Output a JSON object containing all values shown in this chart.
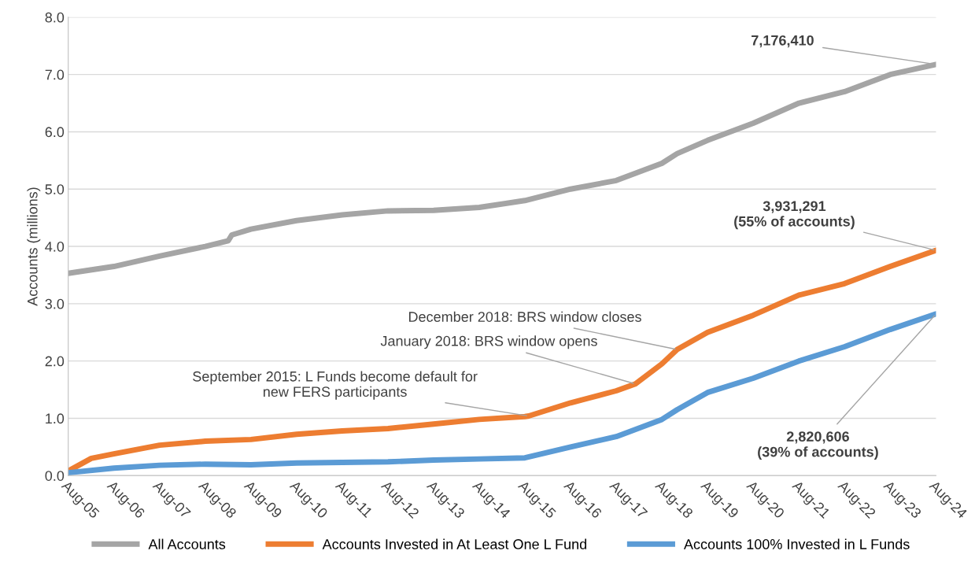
{
  "chart_data": {
    "type": "line",
    "ylabel": "Accounts (millions)",
    "ylim": [
      0,
      8
    ],
    "yticks": [
      {
        "value": 0,
        "label": "0.0"
      },
      {
        "value": 1,
        "label": "1.0"
      },
      {
        "value": 2,
        "label": "2.0"
      },
      {
        "value": 3,
        "label": "3.0"
      },
      {
        "value": 4,
        "label": "4.0"
      },
      {
        "value": 5,
        "label": "5.0"
      },
      {
        "value": 6,
        "label": "6.0"
      },
      {
        "value": 7,
        "label": "7.0"
      },
      {
        "value": 8,
        "label": "8.0"
      }
    ],
    "xlim": [
      "2005-08",
      "2024-08"
    ],
    "xticks": [
      {
        "value": "2005-08",
        "label": "Aug-05"
      },
      {
        "value": "2006-08",
        "label": "Aug-06"
      },
      {
        "value": "2007-08",
        "label": "Aug-07"
      },
      {
        "value": "2008-08",
        "label": "Aug-08"
      },
      {
        "value": "2009-08",
        "label": "Aug-09"
      },
      {
        "value": "2010-08",
        "label": "Aug-10"
      },
      {
        "value": "2011-08",
        "label": "Aug-11"
      },
      {
        "value": "2012-08",
        "label": "Aug-12"
      },
      {
        "value": "2013-08",
        "label": "Aug-13"
      },
      {
        "value": "2014-08",
        "label": "Aug-14"
      },
      {
        "value": "2015-08",
        "label": "Aug-15"
      },
      {
        "value": "2016-08",
        "label": "Aug-16"
      },
      {
        "value": "2017-08",
        "label": "Aug-17"
      },
      {
        "value": "2018-08",
        "label": "Aug-18"
      },
      {
        "value": "2019-08",
        "label": "Aug-19"
      },
      {
        "value": "2020-08",
        "label": "Aug-20"
      },
      {
        "value": "2021-08",
        "label": "Aug-21"
      },
      {
        "value": "2022-08",
        "label": "Aug-22"
      },
      {
        "value": "2023-08",
        "label": "Aug-23"
      },
      {
        "value": "2024-08",
        "label": "Aug-24"
      }
    ],
    "grid": "y",
    "legend": "bottom",
    "marker": "none",
    "line_style": "solid",
    "series": [
      {
        "name": "All Accounts",
        "color": "#a5a5a5",
        "x": [
          "2005-08",
          "2006-08",
          "2007-08",
          "2008-08",
          "2009-02",
          "2009-03",
          "2009-08",
          "2010-08",
          "2011-08",
          "2012-08",
          "2013-08",
          "2014-08",
          "2015-08",
          "2016-08",
          "2017-08",
          "2018-08",
          "2018-12",
          "2019-08",
          "2020-08",
          "2021-08",
          "2022-08",
          "2023-02",
          "2023-08",
          "2024-08"
        ],
        "values": [
          3.53,
          3.65,
          3.83,
          4.0,
          4.1,
          4.2,
          4.3,
          4.45,
          4.55,
          4.62,
          4.63,
          4.68,
          4.8,
          5.0,
          5.15,
          5.45,
          5.62,
          5.85,
          6.15,
          6.5,
          6.7,
          6.85,
          7.0,
          7.176
        ]
      },
      {
        "name": "Accounts Invested in At Least One L Fund",
        "color": "#ed7d31",
        "x": [
          "2005-08",
          "2006-02",
          "2006-08",
          "2007-08",
          "2008-08",
          "2009-08",
          "2010-08",
          "2011-08",
          "2012-08",
          "2013-08",
          "2014-08",
          "2015-08",
          "2015-09",
          "2016-08",
          "2017-08",
          "2018-01",
          "2018-08",
          "2018-12",
          "2019-08",
          "2020-08",
          "2021-08",
          "2022-08",
          "2023-08",
          "2024-08"
        ],
        "values": [
          0.08,
          0.3,
          0.38,
          0.53,
          0.6,
          0.63,
          0.72,
          0.78,
          0.82,
          0.9,
          0.98,
          1.03,
          1.04,
          1.27,
          1.48,
          1.6,
          1.95,
          2.2,
          2.5,
          2.8,
          3.15,
          3.35,
          3.65,
          3.931
        ]
      },
      {
        "name": "Accounts 100% Invested in L Funds",
        "color": "#5b9bd5",
        "x": [
          "2005-08",
          "2006-08",
          "2007-08",
          "2008-08",
          "2009-08",
          "2010-08",
          "2011-08",
          "2012-08",
          "2013-08",
          "2014-08",
          "2015-08",
          "2016-08",
          "2017-08",
          "2018-08",
          "2018-12",
          "2019-08",
          "2020-08",
          "2021-08",
          "2022-08",
          "2023-08",
          "2024-08"
        ],
        "values": [
          0.05,
          0.13,
          0.18,
          0.2,
          0.19,
          0.22,
          0.23,
          0.24,
          0.27,
          0.29,
          0.31,
          0.5,
          0.68,
          0.98,
          1.15,
          1.45,
          1.7,
          2.0,
          2.25,
          2.55,
          2.821
        ]
      }
    ],
    "annotations": [
      {
        "text": "7,176,410",
        "x": "2024-08",
        "y": 7.176
      },
      {
        "text": "3,931,291\n(55% of accounts)",
        "x": "2024-08",
        "y": 3.931
      },
      {
        "text": "2,820,606\n(39% of accounts)",
        "x": "2024-08",
        "y": 2.821
      },
      {
        "text": "September 2015: L Funds become default for\nnew FERS participants",
        "x": "2015-09",
        "y": 1.04
      },
      {
        "text": "January 2018: BRS window opens",
        "x": "2018-01",
        "y": 1.6
      },
      {
        "text": "December 2018: BRS window closes",
        "x": "2018-12",
        "y": 2.2
      }
    ]
  }
}
